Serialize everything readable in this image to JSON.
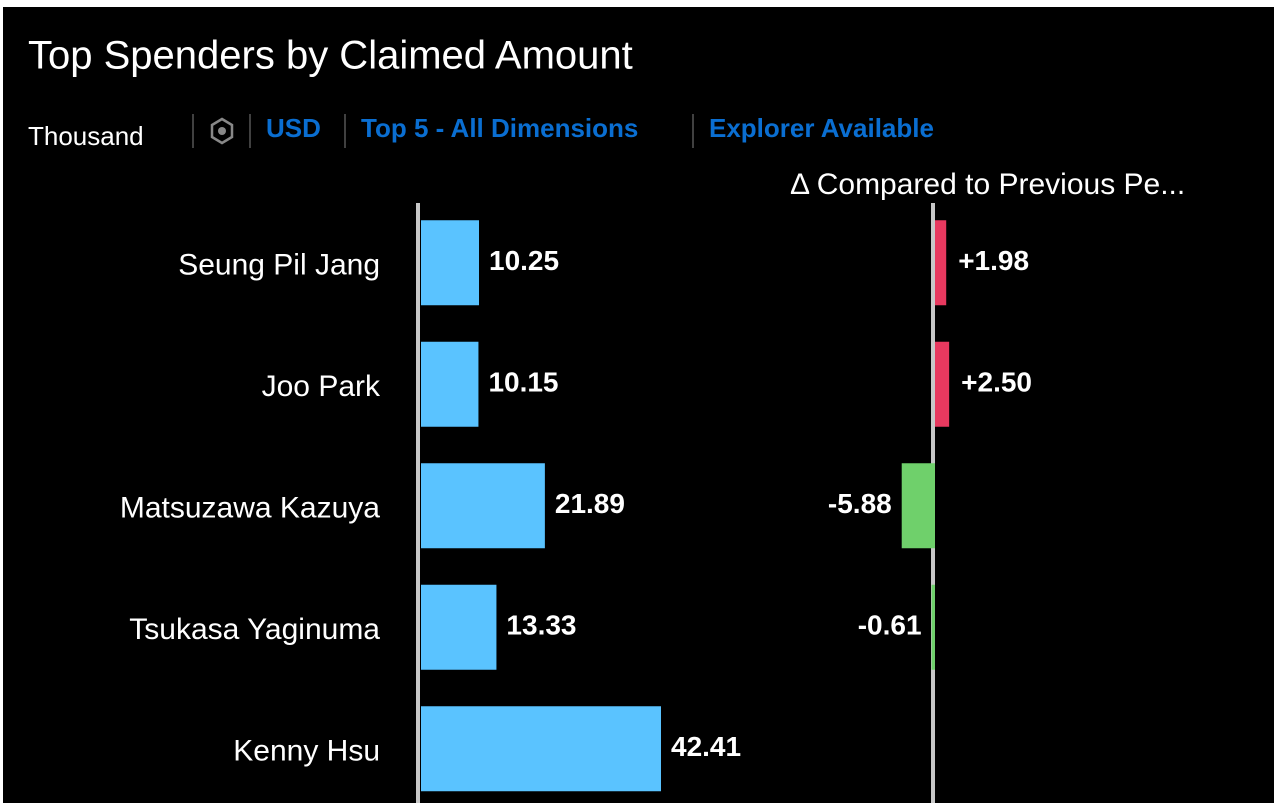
{
  "chart_data": {
    "type": "bar",
    "title": "Top Spenders by Claimed Amount",
    "subtitle": {
      "unit": "Thousand",
      "currency": "USD",
      "filter": "Top 5 - All Dimensions",
      "explorer": "Explorer Available"
    },
    "categories": [
      "Seung Pil Jang",
      "Joo Park",
      "Matsuzawa Kazuya",
      "Tsukasa Yaginuma",
      "Kenny Hsu"
    ],
    "values": [
      10.25,
      10.15,
      21.89,
      13.33,
      42.41
    ],
    "color": "#5ac3ff",
    "variance": {
      "title": "Δ Compared to Previous Pe...",
      "values": [
        1.98,
        2.5,
        -5.88,
        -0.61,
        null
      ],
      "value_labels": [
        "+1.98",
        "+2.50",
        "-5.88",
        "-0.61",
        null
      ],
      "positive_color": "#e8395f",
      "negative_color": "#6fd06b"
    }
  }
}
